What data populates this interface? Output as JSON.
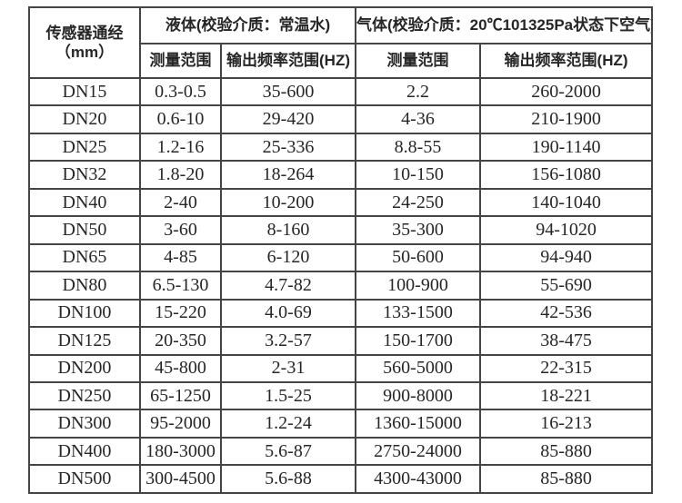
{
  "page": {
    "background": "#ffffff",
    "border_color": "#444444",
    "text_color": "#262626"
  },
  "table": {
    "header": {
      "diameter_line1": "传感器通经",
      "diameter_line2": "（mm）",
      "liquid_group": "液体(校验介质：常温水)",
      "gas_group": "气体(校验介质：20℃101325Pa状态下空气)",
      "measure_range": "测量范围",
      "freq_range": "输出频率范围(HZ)"
    },
    "rows": [
      {
        "dn": "DN15",
        "liquid_range": "0.3-0.5",
        "liquid_freq": "35-600",
        "gas_range": "2.2",
        "gas_freq": "260-2000"
      },
      {
        "dn": "DN20",
        "liquid_range": "0.6-10",
        "liquid_freq": "29-420",
        "gas_range": "4-36",
        "gas_freq": "210-1900"
      },
      {
        "dn": "DN25",
        "liquid_range": "1.2-16",
        "liquid_freq": "25-336",
        "gas_range": "8.8-55",
        "gas_freq": "190-1140"
      },
      {
        "dn": "DN32",
        "liquid_range": "1.8-20",
        "liquid_freq": "18-264",
        "gas_range": "10-150",
        "gas_freq": "156-1080"
      },
      {
        "dn": "DN40",
        "liquid_range": "2-40",
        "liquid_freq": "10-200",
        "gas_range": "24-250",
        "gas_freq": "140-1040"
      },
      {
        "dn": "DN50",
        "liquid_range": "3-60",
        "liquid_freq": "8-160",
        "gas_range": "35-300",
        "gas_freq": "94-1020"
      },
      {
        "dn": "DN65",
        "liquid_range": "4-85",
        "liquid_freq": "6-120",
        "gas_range": "50-600",
        "gas_freq": "94-940"
      },
      {
        "dn": "DN80",
        "liquid_range": "6.5-130",
        "liquid_freq": "4.7-82",
        "gas_range": "100-900",
        "gas_freq": "55-690"
      },
      {
        "dn": "DN100",
        "liquid_range": "15-220",
        "liquid_freq": "4.0-69",
        "gas_range": "133-1500",
        "gas_freq": "42-536"
      },
      {
        "dn": "DN125",
        "liquid_range": "20-350",
        "liquid_freq": "3.2-57",
        "gas_range": "150-1700",
        "gas_freq": "38-475"
      },
      {
        "dn": "DN200",
        "liquid_range": "45-800",
        "liquid_freq": "2-31",
        "gas_range": "560-5000",
        "gas_freq": "22-315"
      },
      {
        "dn": "DN250",
        "liquid_range": "65-1250",
        "liquid_freq": "1.5-25",
        "gas_range": "900-8000",
        "gas_freq": "18-221"
      },
      {
        "dn": "DN300",
        "liquid_range": "95-2000",
        "liquid_freq": "1.2-24",
        "gas_range": "1360-15000",
        "gas_freq": "16-213"
      },
      {
        "dn": "DN400",
        "liquid_range": "180-3000",
        "liquid_freq": "5.6-87",
        "gas_range": "2750-24000",
        "gas_freq": "85-880"
      },
      {
        "dn": "DN500",
        "liquid_range": "300-4500",
        "liquid_freq": "5.6-88",
        "gas_range": "4300-43000",
        "gas_freq": "85-880"
      }
    ]
  }
}
